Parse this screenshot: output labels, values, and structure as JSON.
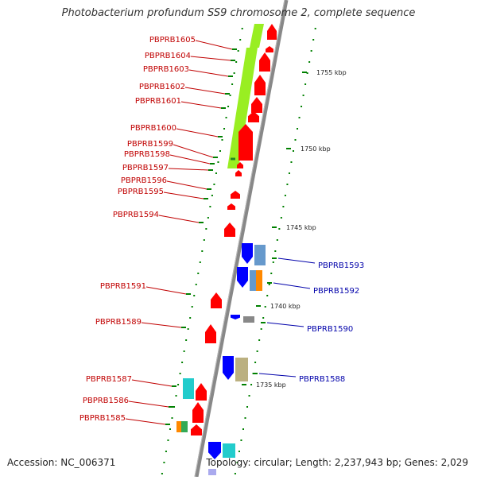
{
  "title": "Photobacterium profundum SS9 chromosome 2, complete sequence",
  "footer": {
    "accession": "Accession: NC_006371",
    "stats": "Topology: circular; Length: 2,237,943 bp; Genes: 2,029"
  },
  "colors": {
    "left_label": "#c00000",
    "right_label": "#0000aa",
    "forward_gene": "#ff0000",
    "reverse_gene": "#0000ff",
    "backbone": "#888888",
    "tick": "#008000",
    "lime_feature": "#99ee22",
    "cyan_feature": "#22cccc",
    "steel_feature": "#6699cc",
    "orange_feature": "#ff8800",
    "khaki_feature": "#bbb080"
  },
  "kbp_marks": [
    "1755 kbp",
    "1750 kbp",
    "1745 kbp",
    "1740 kbp",
    "1735 kbp"
  ],
  "left_genes": [
    "PBPRB1605",
    "PBPRB1604",
    "PBPRB1603",
    "PBPRB1602",
    "PBPRB1601",
    "PBPRB1600",
    "PBPRB1599",
    "PBPRB1598",
    "PBPRB1597",
    "PBPRB1596",
    "PBPRB1595",
    "PBPRB1594",
    "PBPRB1591",
    "PBPRB1589",
    "PBPRB1587",
    "PBPRB1586",
    "PBPRB1585"
  ],
  "right_genes": [
    "PBPRB1593",
    "PBPRB1592",
    "PBPRB1590",
    "PBPRB1588"
  ]
}
